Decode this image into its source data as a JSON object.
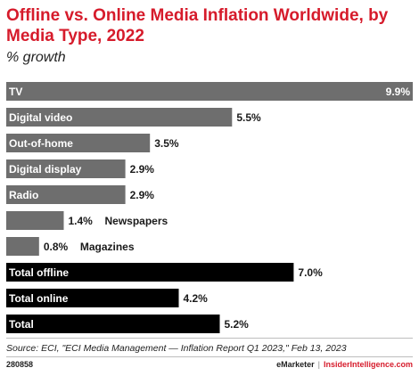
{
  "header": {
    "title": "Offline vs. Online Media Inflation Worldwide, by Media Type, 2022",
    "subtitle": "% growth"
  },
  "footer": {
    "source": "Source: ECI, \"ECI Media Management — Inflation Report Q1 2023,\" Feb 13, 2023",
    "chart_id": "280858",
    "brand": "eMarketer",
    "separator": "|",
    "site": "InsiderIntelligence.com"
  },
  "colors": {
    "title": "#d61b2b",
    "media_bar": "#6e6e6e",
    "total_bar": "#000000"
  },
  "chart_data": {
    "type": "bar",
    "orientation": "horizontal",
    "title": "Offline vs. Online Media Inflation Worldwide, by Media Type, 2022",
    "subtitle": "% growth",
    "xlabel": "",
    "ylabel": "",
    "xlim": [
      0,
      9.9
    ],
    "grid": false,
    "categories": [
      "TV",
      "Digital video",
      "Out-of-home",
      "Digital display",
      "Radio",
      "Newspapers",
      "Magazines",
      "Total offline",
      "Total online",
      "Total"
    ],
    "values": [
      9.9,
      5.5,
      3.5,
      2.9,
      2.9,
      1.4,
      0.8,
      7.0,
      4.2,
      5.2
    ],
    "value_labels": [
      "9.9%",
      "5.5%",
      "3.5%",
      "2.9%",
      "2.9%",
      "1.4%",
      "0.8%",
      "7.0%",
      "4.2%",
      "5.2%"
    ],
    "groups": [
      "media",
      "media",
      "media",
      "media",
      "media",
      "media",
      "media",
      "total",
      "total",
      "total"
    ]
  }
}
